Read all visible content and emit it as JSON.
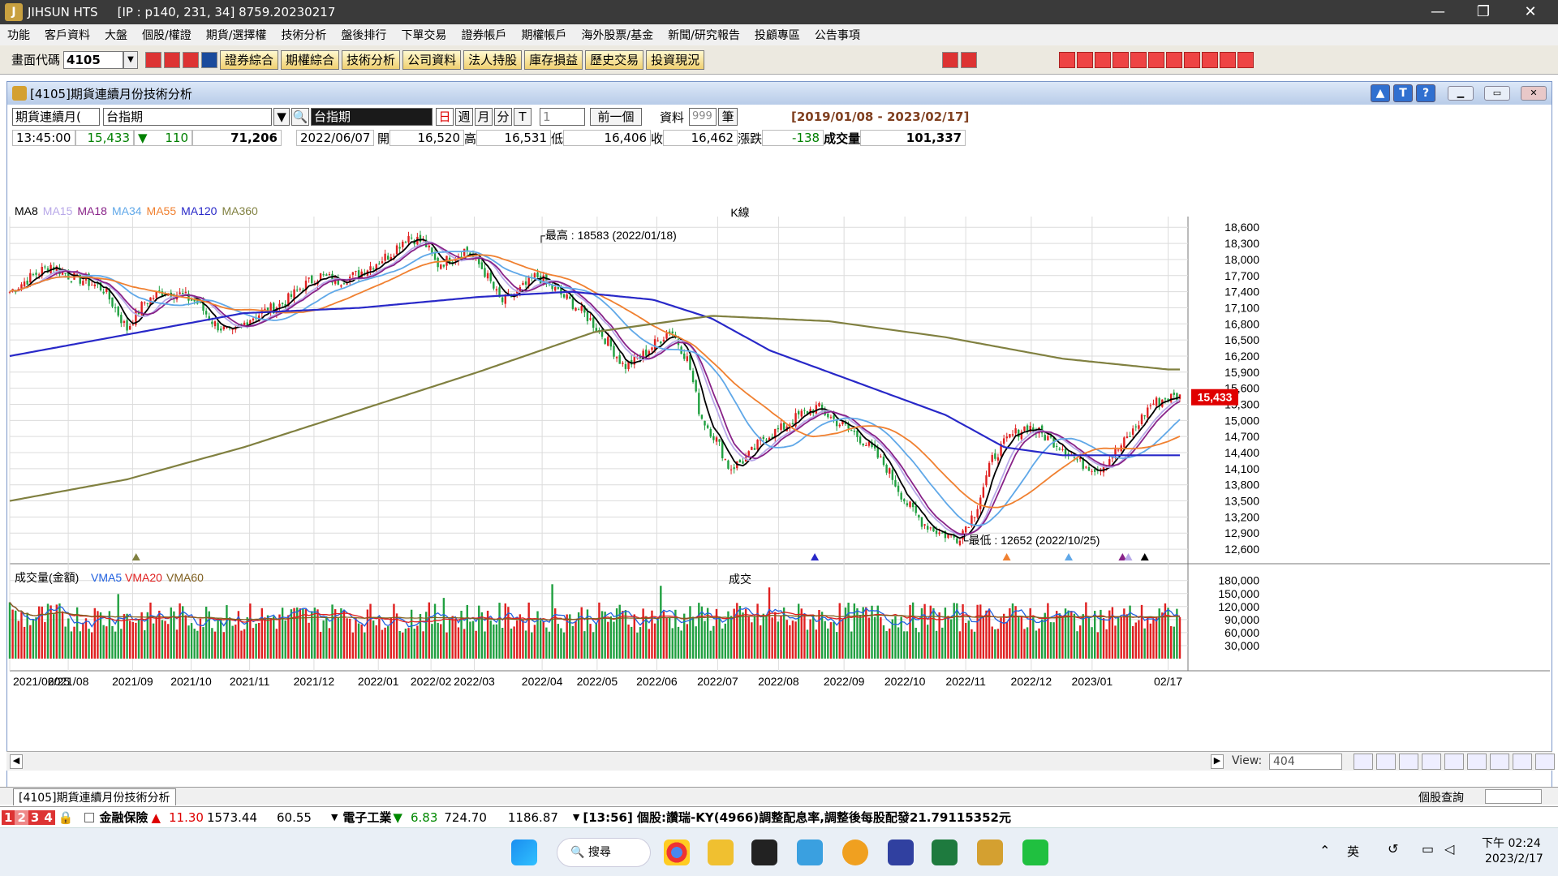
{
  "app": {
    "title": "JIHSUN HTS",
    "conn": "[IP : p140, 231, 34] 8759.20230217"
  },
  "menu": [
    "功能",
    "客戶資料",
    "大盤",
    "個股/權證",
    "期貨/選擇權",
    "技術分析",
    "盤後排行",
    "下單交易",
    "證券帳戶",
    "期權帳戶",
    "海外股票/基金",
    "新聞/研究報告",
    "投顧專區",
    "公告事項"
  ],
  "toolbar": {
    "code_label": "畫面代碼",
    "code_value": "4105",
    "buttons": [
      "證券綜合",
      "期權綜合",
      "技術分析",
      "公司資料",
      "法人持股",
      "庫存損益",
      "歷史交易",
      "投資現況"
    ]
  },
  "window": {
    "title": "[4105]期貨連續月份技術分析"
  },
  "controls": {
    "contract": "期貨連續月(",
    "symbol": "台指期",
    "symbol_name": "台指期",
    "periods": [
      "日",
      "週",
      "月",
      "分",
      "T"
    ],
    "period_value": "1",
    "prev_btn": "前一個",
    "data_label": "資料",
    "data_count": "999",
    "data_unit": "筆",
    "range": "[2019/01/08 - 2023/02/17]"
  },
  "quote": {
    "time": "13:45:00",
    "last": "15,433",
    "chg": "110",
    "vol": "71,206",
    "date": "2022/06/07",
    "open_label": "開",
    "open": "16,520",
    "high_label": "高",
    "high": "16,531",
    "low_label": "低",
    "low": "16,406",
    "close_label": "收",
    "close": "16,462",
    "diff_label": "漲跌",
    "diff": "-138",
    "volume_label": "成交量",
    "volume": "101,337"
  },
  "legend": {
    "ma": [
      {
        "name": "MA8",
        "color": "#000000"
      },
      {
        "name": "MA15",
        "color": "#b8a8e8"
      },
      {
        "name": "MA18",
        "color": "#882288"
      },
      {
        "name": "MA34",
        "color": "#60a8e8"
      },
      {
        "name": "MA55",
        "color": "#f08030"
      },
      {
        "name": "MA120",
        "color": "#2828c8"
      },
      {
        "name": "MA360",
        "color": "#808040"
      }
    ],
    "kline_tag": "K線",
    "vol_title": "成交量(金額)",
    "vol_ma": [
      {
        "name": "VMA5",
        "color": "#2060e0"
      },
      {
        "name": "VMA20",
        "color": "#e02020"
      },
      {
        "name": "VMA60",
        "color": "#806020"
      }
    ],
    "vol_tag": "成交"
  },
  "annotations": {
    "high": "最高 : 18583 (2022/01/18)",
    "low": "最低 : 12652 (2022/10/25)",
    "last_tag": "15,433"
  },
  "chart_data": {
    "type": "line",
    "price_ticks": [
      "18,600",
      "18,300",
      "18,000",
      "17,700",
      "17,400",
      "17,100",
      "16,800",
      "16,500",
      "16,200",
      "15,900",
      "15,600",
      "15,300",
      "15,000",
      "14,700",
      "14,400",
      "14,100",
      "13,800",
      "13,500",
      "13,200",
      "12,900",
      "12,600"
    ],
    "ylim": [
      12450,
      18800
    ],
    "vol_ticks": [
      "180,000",
      "150,000",
      "120,000",
      "90,000",
      "60,000",
      "30,000"
    ],
    "vol_ylim": [
      0,
      200000
    ],
    "x_labels": [
      "2021/06/25",
      "2021/08",
      "2021/09",
      "2021/10",
      "2021/11",
      "2021/12",
      "2022/01",
      "2022/02",
      "2022/03",
      "2022/04",
      "2022/05",
      "2022/06",
      "2022/07",
      "2022/08",
      "2022/09",
      "2022/10",
      "2022/11",
      "2022/12",
      "2023/01",
      "02/17"
    ],
    "x_label_pos": [
      0,
      0.05,
      0.105,
      0.155,
      0.205,
      0.26,
      0.315,
      0.36,
      0.397,
      0.455,
      0.502,
      0.553,
      0.605,
      0.657,
      0.713,
      0.765,
      0.817,
      0.873,
      0.925,
      0.99
    ],
    "close_keys": [
      [
        0,
        17400
      ],
      [
        0.02,
        17700
      ],
      [
        0.035,
        17900
      ],
      [
        0.05,
        17700
      ],
      [
        0.065,
        17600
      ],
      [
        0.08,
        17450
      ],
      [
        0.09,
        17100
      ],
      [
        0.1,
        16700
      ],
      [
        0.115,
        17200
      ],
      [
        0.13,
        17400
      ],
      [
        0.145,
        17350
      ],
      [
        0.16,
        17200
      ],
      [
        0.175,
        16800
      ],
      [
        0.19,
        16600
      ],
      [
        0.205,
        16900
      ],
      [
        0.22,
        17050
      ],
      [
        0.235,
        17200
      ],
      [
        0.25,
        17500
      ],
      [
        0.265,
        17700
      ],
      [
        0.28,
        17600
      ],
      [
        0.295,
        17700
      ],
      [
        0.31,
        17900
      ],
      [
        0.325,
        18100
      ],
      [
        0.34,
        18450
      ],
      [
        0.355,
        18300
      ],
      [
        0.365,
        17900
      ],
      [
        0.38,
        18050
      ],
      [
        0.39,
        18200
      ],
      [
        0.405,
        17800
      ],
      [
        0.42,
        17200
      ],
      [
        0.435,
        17400
      ],
      [
        0.45,
        17700
      ],
      [
        0.465,
        17450
      ],
      [
        0.48,
        17200
      ],
      [
        0.495,
        16900
      ],
      [
        0.51,
        16500
      ],
      [
        0.525,
        16000
      ],
      [
        0.54,
        16200
      ],
      [
        0.555,
        16500
      ],
      [
        0.565,
        16700
      ],
      [
        0.58,
        16100
      ],
      [
        0.59,
        15100
      ],
      [
        0.605,
        14600
      ],
      [
        0.615,
        14100
      ],
      [
        0.63,
        14300
      ],
      [
        0.645,
        14700
      ],
      [
        0.66,
        14850
      ],
      [
        0.675,
        15100
      ],
      [
        0.69,
        15250
      ],
      [
        0.705,
        15000
      ],
      [
        0.72,
        14800
      ],
      [
        0.735,
        14500
      ],
      [
        0.75,
        14100
      ],
      [
        0.765,
        13500
      ],
      [
        0.78,
        13100
      ],
      [
        0.795,
        12900
      ],
      [
        0.81,
        12800
      ],
      [
        0.825,
        13300
      ],
      [
        0.84,
        14300
      ],
      [
        0.855,
        14700
      ],
      [
        0.87,
        14900
      ],
      [
        0.885,
        14700
      ],
      [
        0.9,
        14500
      ],
      [
        0.915,
        14200
      ],
      [
        0.93,
        14100
      ],
      [
        0.945,
        14400
      ],
      [
        0.96,
        14800
      ],
      [
        0.975,
        15300
      ],
      [
        0.99,
        15433
      ]
    ],
    "ma120_keys": [
      [
        0,
        16200
      ],
      [
        0.1,
        16600
      ],
      [
        0.2,
        17000
      ],
      [
        0.3,
        17100
      ],
      [
        0.4,
        17300
      ],
      [
        0.48,
        17400
      ],
      [
        0.55,
        17250
      ],
      [
        0.6,
        16900
      ],
      [
        0.65,
        16300
      ],
      [
        0.7,
        15900
      ],
      [
        0.75,
        15500
      ],
      [
        0.8,
        15100
      ],
      [
        0.85,
        14500
      ],
      [
        0.9,
        14350
      ],
      [
        0.99,
        14350
      ]
    ],
    "ma360_keys": [
      [
        0,
        13500
      ],
      [
        0.1,
        13900
      ],
      [
        0.2,
        14500
      ],
      [
        0.3,
        15200
      ],
      [
        0.4,
        15900
      ],
      [
        0.5,
        16650
      ],
      [
        0.6,
        16950
      ],
      [
        0.7,
        16850
      ],
      [
        0.8,
        16550
      ],
      [
        0.9,
        16150
      ],
      [
        0.99,
        15950
      ]
    ],
    "markers": [
      {
        "x": 0.108,
        "color": "#808040"
      },
      {
        "x": 0.688,
        "color": "#2828c8"
      },
      {
        "x": 0.852,
        "color": "#f08030"
      },
      {
        "x": 0.905,
        "color": "#60a8e8"
      },
      {
        "x": 0.951,
        "color": "#882288"
      },
      {
        "x": 0.956,
        "color": "#b8a8e8"
      },
      {
        "x": 0.97,
        "color": "#000000"
      }
    ]
  },
  "scroll": {
    "view_label": "View:",
    "view_value": "404"
  },
  "tab": {
    "label": "[4105]期貨連續月份技術分析",
    "right_label": "個股查詢"
  },
  "ticker": {
    "item1_name": "金融保險",
    "item1_chg": "11.30",
    "item1_idx": "1573.44",
    "item1_val": "60.55",
    "item2_name": "電子工業",
    "item2_chg": "6.83",
    "item2_idx": "724.70",
    "item2_val": "1186.87",
    "news": "[13:56] 個股:讚瑞-KY(4966)調整配息率,調整後每股配發21.79115352元"
  },
  "taskbar": {
    "search": "搜尋",
    "time": "下午 02:24",
    "date": "2023/2/17",
    "ime": "英"
  }
}
